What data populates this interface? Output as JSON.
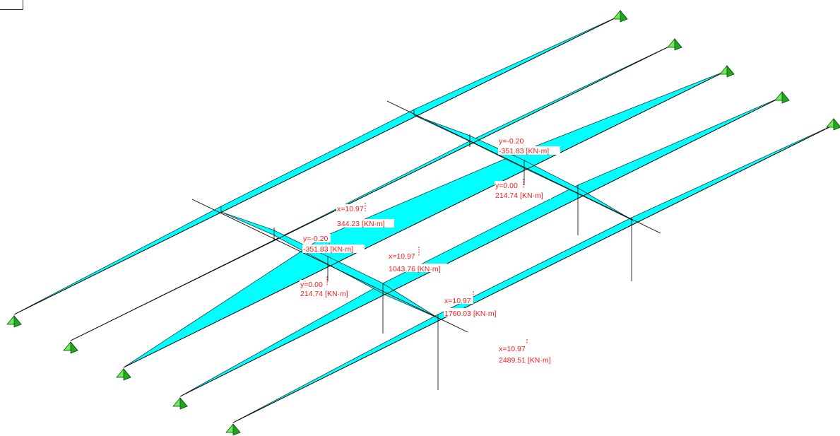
{
  "colors": {
    "diagram_fill": "#00ffff",
    "label_text": "#ff1a1a",
    "support": "#22bb22",
    "line": "#000000"
  },
  "girders": [
    {
      "id": "g1",
      "label_x": "x=10.97",
      "label_value": "344.23 [KN·m]"
    },
    {
      "id": "g2",
      "label_x": "x=10.97",
      "label_value": "1043.76 [KN·m]"
    },
    {
      "id": "g3",
      "label_x": "x=10.97",
      "label_value": "1760.03 [KN·m]"
    },
    {
      "id": "g4",
      "label_x": "x=10.97",
      "label_value": "2489.51 [KN·m]"
    }
  ],
  "cross_beams": [
    {
      "id": "cb1",
      "label_top_y": "y=-0.20",
      "label_top_value": "-351.83 [KN·m]",
      "label_mid_y": "y=0.00",
      "label_mid_value": "214.74 [KN·m]"
    },
    {
      "id": "cb2",
      "label_top_y": "y=-0.20",
      "label_top_value": "-351.83 [KN·m]",
      "label_mid_y": "y=0.00",
      "label_mid_value": "214.74 [KN·m]"
    }
  ],
  "support_icon": "pinned-support-icon"
}
